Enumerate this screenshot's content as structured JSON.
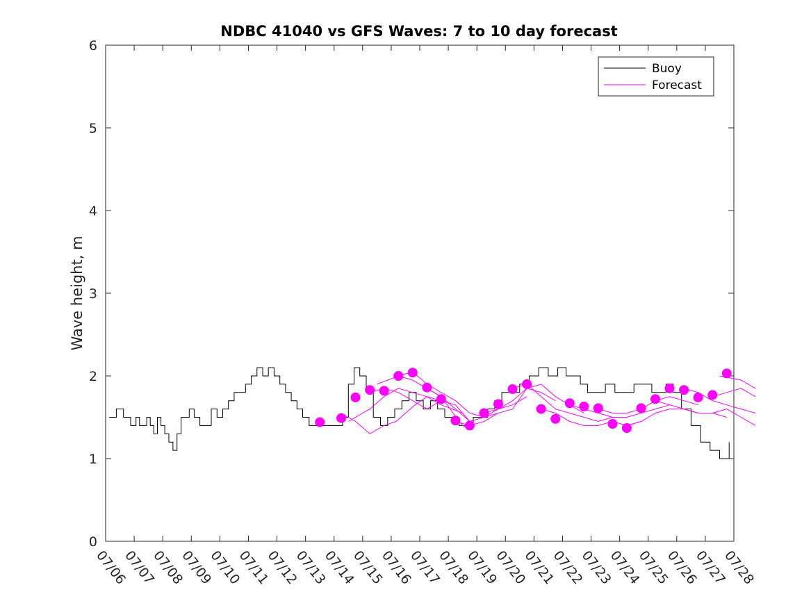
{
  "chart_data": {
    "type": "line",
    "title": "NDBC 41040 vs GFS Waves: 7 to 10 day forecast",
    "xlabel": "",
    "ylabel": "Wave height, m",
    "ylim": [
      0,
      6
    ],
    "yticks": [
      0,
      1,
      2,
      3,
      4,
      5,
      6
    ],
    "xlim": [
      "07/06",
      "07/28"
    ],
    "xtick_labels": [
      "07/06",
      "07/07",
      "07/08",
      "07/09",
      "07/10",
      "07/11",
      "07/12",
      "07/13",
      "07/14",
      "07/15",
      "07/16",
      "07/17",
      "07/18",
      "07/19",
      "07/20",
      "07/21",
      "07/22",
      "07/23",
      "07/24",
      "07/25",
      "07/26",
      "07/27",
      "07/28"
    ],
    "grid": false,
    "legend_position": "top-right",
    "colors": {
      "buoy": "#000000",
      "forecast": "#ff00ff"
    },
    "series": [
      {
        "name": "Buoy",
        "kind": "line",
        "x_days_label_unit": "date (07/DD)",
        "points": [
          [
            "07/06",
            1.5
          ],
          [
            "07/06",
            1.6
          ],
          [
            "07/06",
            1.5
          ],
          [
            "07/06",
            1.4
          ],
          [
            "07/07",
            1.5
          ],
          [
            "07/07",
            1.4
          ],
          [
            "07/07",
            1.4
          ],
          [
            "07/07",
            1.5
          ],
          [
            "07/07",
            1.4
          ],
          [
            "07/07",
            1.3
          ],
          [
            "07/07",
            1.5
          ],
          [
            "07/07",
            1.4
          ],
          [
            "07/08",
            1.3
          ],
          [
            "07/08",
            1.2
          ],
          [
            "07/08",
            1.1
          ],
          [
            "07/08",
            1.3
          ],
          [
            "07/08",
            1.5
          ],
          [
            "07/08",
            1.5
          ],
          [
            "07/08",
            1.6
          ],
          [
            "07/09",
            1.5
          ],
          [
            "07/09",
            1.4
          ],
          [
            "07/09",
            1.4
          ],
          [
            "07/09",
            1.6
          ],
          [
            "07/09",
            1.5
          ],
          [
            "07/10",
            1.6
          ],
          [
            "07/10",
            1.7
          ],
          [
            "07/10",
            1.8
          ],
          [
            "07/10",
            1.8
          ],
          [
            "07/10",
            1.9
          ],
          [
            "07/11",
            2.0
          ],
          [
            "07/11",
            2.1
          ],
          [
            "07/11",
            2.0
          ],
          [
            "07/11",
            2.1
          ],
          [
            "07/11",
            2.0
          ],
          [
            "07/12",
            1.9
          ],
          [
            "07/12",
            1.8
          ],
          [
            "07/12",
            1.7
          ],
          [
            "07/12",
            1.6
          ],
          [
            "07/12",
            1.5
          ],
          [
            "07/13",
            1.4
          ],
          [
            "07/13",
            1.4
          ],
          [
            "07/13",
            1.4
          ],
          [
            "07/13",
            1.4
          ],
          [
            "07/14",
            1.4
          ],
          [
            "07/14",
            1.5
          ],
          [
            "07/14",
            1.9
          ],
          [
            "07/14",
            2.1
          ],
          [
            "07/14",
            2.0
          ],
          [
            "07/15",
            1.8
          ],
          [
            "07/15",
            1.5
          ],
          [
            "07/15",
            1.4
          ],
          [
            "07/15",
            1.5
          ],
          [
            "07/16",
            1.6
          ],
          [
            "07/16",
            1.7
          ],
          [
            "07/16",
            1.8
          ],
          [
            "07/16",
            1.7
          ],
          [
            "07/17",
            1.6
          ],
          [
            "07/17",
            1.7
          ],
          [
            "07/17",
            1.6
          ],
          [
            "07/17",
            1.5
          ],
          [
            "07/18",
            1.5
          ],
          [
            "07/18",
            1.4
          ],
          [
            "07/18",
            1.4
          ],
          [
            "07/18",
            1.5
          ],
          [
            "07/19",
            1.5
          ],
          [
            "07/19",
            1.6
          ],
          [
            "07/19",
            1.7
          ],
          [
            "07/19",
            1.8
          ],
          [
            "07/20",
            1.8
          ],
          [
            "07/20",
            1.9
          ],
          [
            "07/20",
            2.0
          ],
          [
            "07/21",
            2.1
          ],
          [
            "07/21",
            2.0
          ],
          [
            "07/21",
            2.1
          ],
          [
            "07/22",
            2.0
          ],
          [
            "07/22",
            2.0
          ],
          [
            "07/22",
            1.9
          ],
          [
            "07/22",
            1.8
          ],
          [
            "07/23",
            1.8
          ],
          [
            "07/23",
            1.9
          ],
          [
            "07/23",
            1.8
          ],
          [
            "07/24",
            1.8
          ],
          [
            "07/24",
            1.9
          ],
          [
            "07/24",
            1.9
          ],
          [
            "07/25",
            1.8
          ],
          [
            "07/25",
            1.8
          ],
          [
            "07/25",
            1.9
          ],
          [
            "07/25",
            1.8
          ],
          [
            "07/26",
            1.6
          ],
          [
            "07/26",
            1.4
          ],
          [
            "07/26",
            1.2
          ],
          [
            "07/27",
            1.1
          ],
          [
            "07/27",
            1.0
          ],
          [
            "07/27",
            1.2
          ]
        ]
      },
      {
        "name": "Forecast",
        "kind": "line",
        "x_label_unit": "date (07/DD)",
        "runs": [
          [
            [
              "07/14",
              1.55
            ],
            [
              "07/14",
              1.45
            ],
            [
              "07/15",
              1.3
            ],
            [
              "07/15",
              1.4
            ],
            [
              "07/16",
              1.45
            ],
            [
              "07/16",
              1.55
            ],
            [
              "07/16",
              1.65
            ],
            [
              "07/17",
              1.75
            ],
            [
              "07/17",
              1.7
            ]
          ],
          [
            [
              "07/14",
              1.45
            ],
            [
              "07/15",
              1.6
            ],
            [
              "07/15",
              1.75
            ],
            [
              "07/16",
              1.85
            ],
            [
              "07/16",
              1.8
            ],
            [
              "07/17",
              1.75
            ],
            [
              "07/17",
              1.65
            ],
            [
              "07/18",
              1.55
            ]
          ],
          [
            [
              "07/15",
              1.8
            ],
            [
              "07/15",
              1.85
            ],
            [
              "07/16",
              1.8
            ],
            [
              "07/16",
              1.7
            ],
            [
              "07/17",
              1.6
            ],
            [
              "07/17",
              1.7
            ],
            [
              "07/18",
              1.65
            ],
            [
              "07/18",
              1.45
            ]
          ],
          [
            [
              "07/15",
              1.9
            ],
            [
              "07/16",
              2.0
            ],
            [
              "07/16",
              1.95
            ],
            [
              "07/17",
              1.85
            ],
            [
              "07/17",
              1.75
            ],
            [
              "07/18",
              1.55
            ],
            [
              "07/18",
              1.4
            ],
            [
              "07/18",
              1.35
            ]
          ],
          [
            [
              "07/16",
              2.0
            ],
            [
              "07/16",
              2.05
            ],
            [
              "07/17",
              1.9
            ],
            [
              "07/17",
              1.8
            ],
            [
              "07/18",
              1.7
            ],
            [
              "07/18",
              1.55
            ],
            [
              "07/19",
              1.5
            ],
            [
              "07/19",
              1.55
            ]
          ],
          [
            [
              "07/17",
              1.85
            ],
            [
              "07/17",
              1.75
            ],
            [
              "07/18",
              1.6
            ],
            [
              "07/18",
              1.45
            ],
            [
              "07/19",
              1.5
            ],
            [
              "07/19",
              1.6
            ],
            [
              "07/20",
              1.65
            ],
            [
              "07/20",
              1.75
            ]
          ],
          [
            [
              "07/18",
              1.45
            ],
            [
              "07/18",
              1.4
            ],
            [
              "07/19",
              1.45
            ],
            [
              "07/19",
              1.55
            ],
            [
              "07/20",
              1.6
            ],
            [
              "07/20",
              1.85
            ],
            [
              "07/21",
              1.8
            ],
            [
              "07/21",
              1.7
            ]
          ],
          [
            [
              "07/19",
              1.55
            ],
            [
              "07/19",
              1.6
            ],
            [
              "07/20",
              1.7
            ],
            [
              "07/20",
              1.85
            ],
            [
              "07/21",
              1.9
            ],
            [
              "07/21",
              1.75
            ],
            [
              "07/22",
              1.65
            ],
            [
              "07/22",
              1.55
            ]
          ],
          [
            [
              "07/20",
              1.85
            ],
            [
              "07/20",
              1.9
            ],
            [
              "07/21",
              1.75
            ],
            [
              "07/21",
              1.6
            ],
            [
              "07/22",
              1.55
            ],
            [
              "07/22",
              1.5
            ],
            [
              "07/23",
              1.45
            ],
            [
              "07/23",
              1.5
            ]
          ],
          [
            [
              "07/21",
              1.6
            ],
            [
              "07/21",
              1.55
            ],
            [
              "07/22",
              1.45
            ],
            [
              "07/22",
              1.4
            ],
            [
              "07/23",
              1.4
            ],
            [
              "07/23",
              1.45
            ],
            [
              "07/24",
              1.4
            ],
            [
              "07/24",
              1.45
            ]
          ],
          [
            [
              "07/22",
              1.65
            ],
            [
              "07/22",
              1.6
            ],
            [
              "07/23",
              1.55
            ],
            [
              "07/23",
              1.5
            ],
            [
              "07/24",
              1.5
            ],
            [
              "07/24",
              1.55
            ],
            [
              "07/25",
              1.6
            ],
            [
              "07/25",
              1.65
            ]
          ],
          [
            [
              "07/23",
              1.6
            ],
            [
              "07/23",
              1.55
            ],
            [
              "07/24",
              1.55
            ],
            [
              "07/24",
              1.6
            ],
            [
              "07/25",
              1.7
            ],
            [
              "07/25",
              1.75
            ],
            [
              "07/26",
              1.7
            ],
            [
              "07/26",
              1.65
            ]
          ],
          [
            [
              "07/24",
              1.4
            ],
            [
              "07/24",
              1.45
            ],
            [
              "07/25",
              1.55
            ],
            [
              "07/25",
              1.6
            ],
            [
              "07/26",
              1.6
            ],
            [
              "07/26",
              1.55
            ],
            [
              "07/27",
              1.55
            ],
            [
              "07/27",
              1.5
            ]
          ],
          [
            [
              "07/25",
              1.7
            ],
            [
              "07/25",
              1.65
            ],
            [
              "07/26",
              1.6
            ],
            [
              "07/26",
              1.55
            ],
            [
              "07/27",
              1.55
            ],
            [
              "07/27",
              1.6
            ],
            [
              "07/28",
              1.5
            ],
            [
              "07/28",
              1.4
            ]
          ],
          [
            [
              "07/26",
              1.85
            ],
            [
              "07/26",
              1.8
            ],
            [
              "07/27",
              1.7
            ],
            [
              "07/27",
              1.65
            ],
            [
              "07/28",
              1.6
            ],
            [
              "07/28",
              1.55
            ]
          ],
          [
            [
              "07/27",
              1.75
            ],
            [
              "07/27",
              1.8
            ],
            [
              "07/28",
              1.85
            ],
            [
              "07/28",
              1.75
            ]
          ],
          [
            [
              "07/27",
              2.0
            ],
            [
              "07/28",
              1.95
            ],
            [
              "07/28",
              1.85
            ]
          ]
        ],
        "markers": [
          [
            "07/13",
            1.44
          ],
          [
            "07/14",
            1.49
          ],
          [
            "07/14",
            1.74
          ],
          [
            "07/15",
            1.83
          ],
          [
            "07/15",
            1.82
          ],
          [
            "07/16",
            2.0
          ],
          [
            "07/16",
            2.04
          ],
          [
            "07/17",
            1.86
          ],
          [
            "07/17",
            1.72
          ],
          [
            "07/18",
            1.46
          ],
          [
            "07/18",
            1.4
          ],
          [
            "07/19",
            1.55
          ],
          [
            "07/19",
            1.66
          ],
          [
            "07/20",
            1.84
          ],
          [
            "07/20",
            1.9
          ],
          [
            "07/21",
            1.6
          ],
          [
            "07/21",
            1.48
          ],
          [
            "07/22",
            1.67
          ],
          [
            "07/22",
            1.63
          ],
          [
            "07/23",
            1.61
          ],
          [
            "07/23",
            1.42
          ],
          [
            "07/24",
            1.37
          ],
          [
            "07/24",
            1.61
          ],
          [
            "07/25",
            1.72
          ],
          [
            "07/25",
            1.85
          ],
          [
            "07/26",
            1.83
          ],
          [
            "07/26",
            1.74
          ],
          [
            "07/27",
            1.77
          ],
          [
            "07/27",
            2.03
          ]
        ]
      }
    ]
  }
}
